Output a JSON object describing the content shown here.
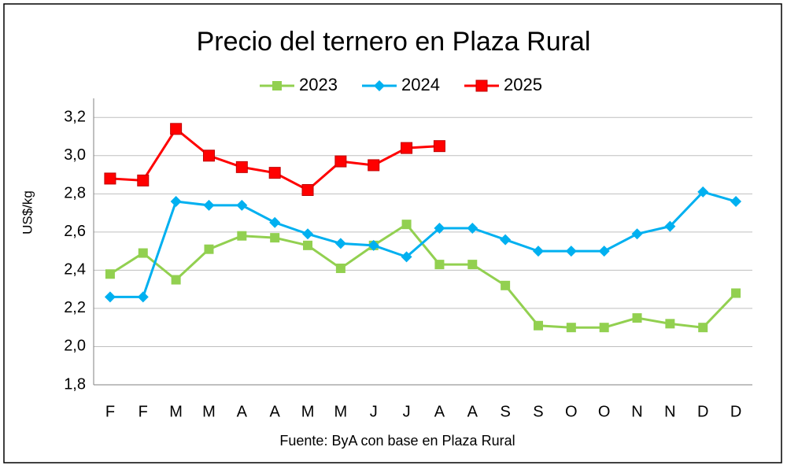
{
  "chart_data": {
    "type": "line",
    "title": "Precio del ternero en Plaza Rural",
    "y_label": "US$/kg",
    "source": "Fuente: ByA con base en Plaza Rural",
    "categories": [
      "F",
      "F",
      "M",
      "M",
      "A",
      "A",
      "M",
      "M",
      "J",
      "J",
      "A",
      "A",
      "S",
      "S",
      "O",
      "O",
      "N",
      "N",
      "D",
      "D"
    ],
    "series": [
      {
        "name": "2023",
        "color": "#92d050",
        "marker": "square",
        "values": [
          2.38,
          2.49,
          2.35,
          2.51,
          2.58,
          2.57,
          2.53,
          2.41,
          2.53,
          2.64,
          2.43,
          2.43,
          2.32,
          2.11,
          2.1,
          2.1,
          2.15,
          2.12,
          2.1,
          2.28
        ]
      },
      {
        "name": "2024",
        "color": "#00b0f0",
        "marker": "diamond",
        "values": [
          2.26,
          2.26,
          2.76,
          2.74,
          2.74,
          2.65,
          2.59,
          2.54,
          2.53,
          2.47,
          2.62,
          2.62,
          2.56,
          2.5,
          2.5,
          2.5,
          2.59,
          2.63,
          2.81,
          2.76
        ]
      },
      {
        "name": "2025",
        "color": "#ff0000",
        "marker": "bigsquare",
        "values": [
          2.88,
          2.87,
          3.14,
          3.0,
          2.94,
          2.91,
          2.82,
          2.97,
          2.95,
          3.04,
          3.05,
          null,
          null,
          null,
          null,
          null,
          null,
          null,
          null,
          null
        ]
      }
    ],
    "ylim": [
      1.8,
      3.3
    ],
    "yticks": [
      {
        "value": 1.8,
        "label": "1,8"
      },
      {
        "value": 2.0,
        "label": "2,0"
      },
      {
        "value": 2.2,
        "label": "2,2"
      },
      {
        "value": 2.4,
        "label": "2,4"
      },
      {
        "value": 2.6,
        "label": "2,6"
      },
      {
        "value": 2.8,
        "label": "2,8"
      },
      {
        "value": 3.0,
        "label": "3,0"
      },
      {
        "value": 3.2,
        "label": "3,2"
      }
    ],
    "grid": true,
    "legend": "top"
  }
}
